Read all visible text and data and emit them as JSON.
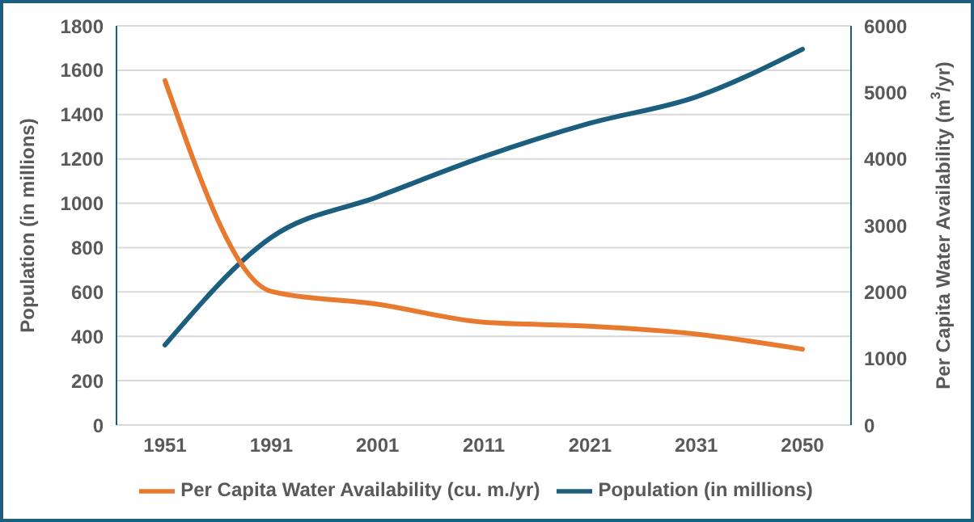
{
  "chart_data": {
    "type": "line",
    "categories": [
      "1951",
      "1991",
      "2001",
      "2011",
      "2021",
      "2031",
      "2050"
    ],
    "ylabel": "Population (in millions)",
    "y2label": "Per Capita Water Availability (m$^{3}$/yr)",
    "ylim": [
      0,
      1800
    ],
    "yticks": [
      0,
      200,
      400,
      600,
      800,
      1000,
      1200,
      1400,
      1600,
      1800
    ],
    "y2lim": [
      0,
      6000
    ],
    "y2ticks": [
      0,
      1000,
      2000,
      3000,
      4000,
      5000,
      6000
    ],
    "series": [
      {
        "name": "Population (in millions)",
        "color": "#1b5e7e",
        "values": [
          361,
          846,
          1029,
          1210,
          1361,
          1480,
          1695
        ]
      },
      {
        "name": "Per Capita Water Availability (cu. m./yr)",
        "color": "#e87a30",
        "axis": "y2",
        "values": [
          5177,
          2009,
          1816,
          1545,
          1486,
          1367,
          1140
        ]
      }
    ],
    "grid": "y",
    "legend": "bottom",
    "marker": "none",
    "line_style": "solid"
  }
}
